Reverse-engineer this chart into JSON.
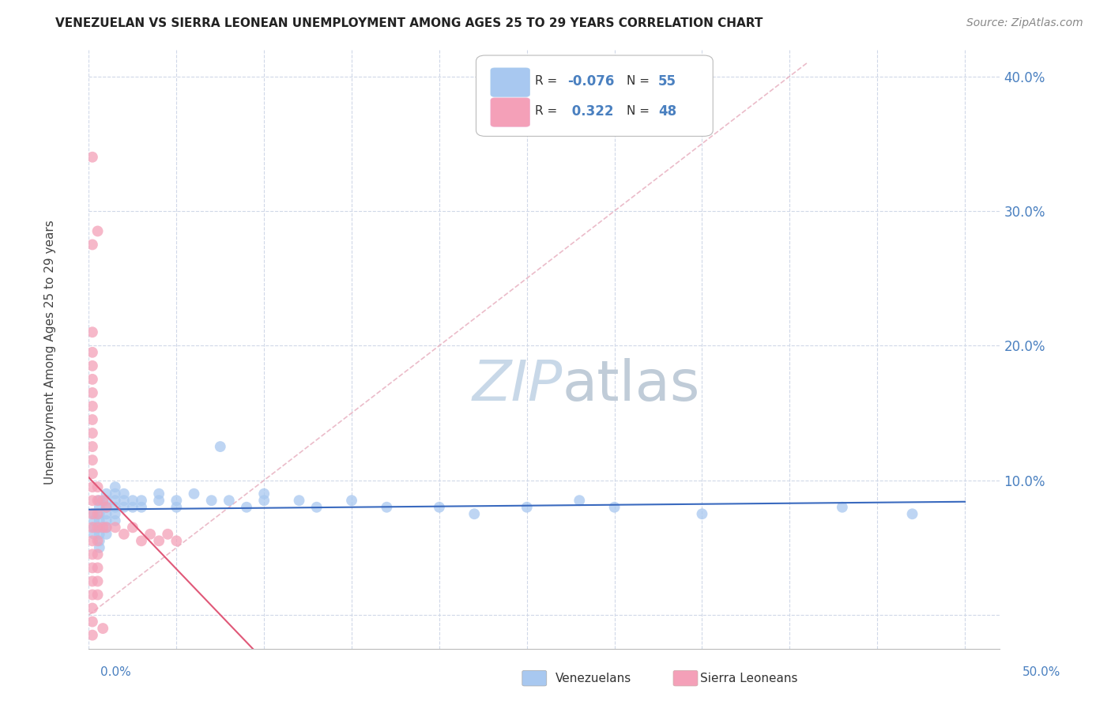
{
  "title": "VENEZUELAN VS SIERRA LEONEAN UNEMPLOYMENT AMONG AGES 25 TO 29 YEARS CORRELATION CHART",
  "source": "Source: ZipAtlas.com",
  "ylabel": "Unemployment Among Ages 25 to 29 years",
  "xlim": [
    0.0,
    0.52
  ],
  "ylim": [
    -0.025,
    0.42
  ],
  "yticks": [
    0.0,
    0.1,
    0.2,
    0.3,
    0.4
  ],
  "ytick_labels": [
    "",
    "10.0%",
    "20.0%",
    "30.0%",
    "40.0%"
  ],
  "xticks": [
    0.0,
    0.05,
    0.1,
    0.15,
    0.2,
    0.25,
    0.3,
    0.35,
    0.4,
    0.45,
    0.5
  ],
  "blue_color": "#a8c8f0",
  "pink_color": "#f4a0b8",
  "blue_line_color": "#3a6abf",
  "pink_line_color": "#e05878",
  "diag_color": "#e8b0c0",
  "watermark_color": "#c8d8e8",
  "grid_color": "#d0d8e8",
  "venezuelan_points": [
    [
      0.003,
      0.075
    ],
    [
      0.003,
      0.07
    ],
    [
      0.003,
      0.065
    ],
    [
      0.003,
      0.06
    ],
    [
      0.006,
      0.085
    ],
    [
      0.006,
      0.08
    ],
    [
      0.006,
      0.075
    ],
    [
      0.006,
      0.07
    ],
    [
      0.006,
      0.065
    ],
    [
      0.006,
      0.06
    ],
    [
      0.006,
      0.055
    ],
    [
      0.006,
      0.05
    ],
    [
      0.01,
      0.09
    ],
    [
      0.01,
      0.085
    ],
    [
      0.01,
      0.08
    ],
    [
      0.01,
      0.075
    ],
    [
      0.01,
      0.07
    ],
    [
      0.01,
      0.065
    ],
    [
      0.01,
      0.06
    ],
    [
      0.015,
      0.095
    ],
    [
      0.015,
      0.09
    ],
    [
      0.015,
      0.085
    ],
    [
      0.015,
      0.08
    ],
    [
      0.015,
      0.075
    ],
    [
      0.015,
      0.07
    ],
    [
      0.02,
      0.09
    ],
    [
      0.02,
      0.085
    ],
    [
      0.02,
      0.08
    ],
    [
      0.025,
      0.085
    ],
    [
      0.025,
      0.08
    ],
    [
      0.03,
      0.085
    ],
    [
      0.03,
      0.08
    ],
    [
      0.04,
      0.09
    ],
    [
      0.04,
      0.085
    ],
    [
      0.05,
      0.085
    ],
    [
      0.05,
      0.08
    ],
    [
      0.06,
      0.09
    ],
    [
      0.07,
      0.085
    ],
    [
      0.075,
      0.125
    ],
    [
      0.08,
      0.085
    ],
    [
      0.09,
      0.08
    ],
    [
      0.1,
      0.09
    ],
    [
      0.1,
      0.085
    ],
    [
      0.12,
      0.085
    ],
    [
      0.13,
      0.08
    ],
    [
      0.15,
      0.085
    ],
    [
      0.17,
      0.08
    ],
    [
      0.2,
      0.08
    ],
    [
      0.22,
      0.075
    ],
    [
      0.25,
      0.08
    ],
    [
      0.28,
      0.085
    ],
    [
      0.3,
      0.08
    ],
    [
      0.35,
      0.075
    ],
    [
      0.43,
      0.08
    ],
    [
      0.47,
      0.075
    ]
  ],
  "sierraleone_points": [
    [
      0.002,
      0.34
    ],
    [
      0.002,
      0.275
    ],
    [
      0.002,
      0.21
    ],
    [
      0.002,
      0.195
    ],
    [
      0.002,
      0.185
    ],
    [
      0.002,
      0.175
    ],
    [
      0.002,
      0.165
    ],
    [
      0.002,
      0.155
    ],
    [
      0.002,
      0.145
    ],
    [
      0.002,
      0.135
    ],
    [
      0.002,
      0.125
    ],
    [
      0.002,
      0.115
    ],
    [
      0.002,
      0.105
    ],
    [
      0.002,
      0.095
    ],
    [
      0.002,
      0.085
    ],
    [
      0.002,
      0.075
    ],
    [
      0.002,
      0.065
    ],
    [
      0.002,
      0.055
    ],
    [
      0.002,
      0.045
    ],
    [
      0.002,
      0.035
    ],
    [
      0.002,
      0.025
    ],
    [
      0.002,
      0.015
    ],
    [
      0.002,
      0.005
    ],
    [
      0.002,
      -0.005
    ],
    [
      0.002,
      -0.015
    ],
    [
      0.005,
      0.285
    ],
    [
      0.005,
      0.095
    ],
    [
      0.005,
      0.085
    ],
    [
      0.005,
      0.075
    ],
    [
      0.005,
      0.065
    ],
    [
      0.005,
      0.055
    ],
    [
      0.005,
      0.045
    ],
    [
      0.005,
      0.035
    ],
    [
      0.005,
      0.025
    ],
    [
      0.005,
      0.015
    ],
    [
      0.008,
      0.085
    ],
    [
      0.008,
      0.065
    ],
    [
      0.008,
      -0.01
    ],
    [
      0.01,
      0.08
    ],
    [
      0.01,
      0.065
    ],
    [
      0.015,
      0.065
    ],
    [
      0.02,
      0.06
    ],
    [
      0.025,
      0.065
    ],
    [
      0.03,
      0.055
    ],
    [
      0.035,
      0.06
    ],
    [
      0.04,
      0.055
    ],
    [
      0.045,
      0.06
    ],
    [
      0.05,
      0.055
    ]
  ],
  "legend_R1": "-0.076",
  "legend_N1": "55",
  "legend_R2": "0.322",
  "legend_N2": "48"
}
